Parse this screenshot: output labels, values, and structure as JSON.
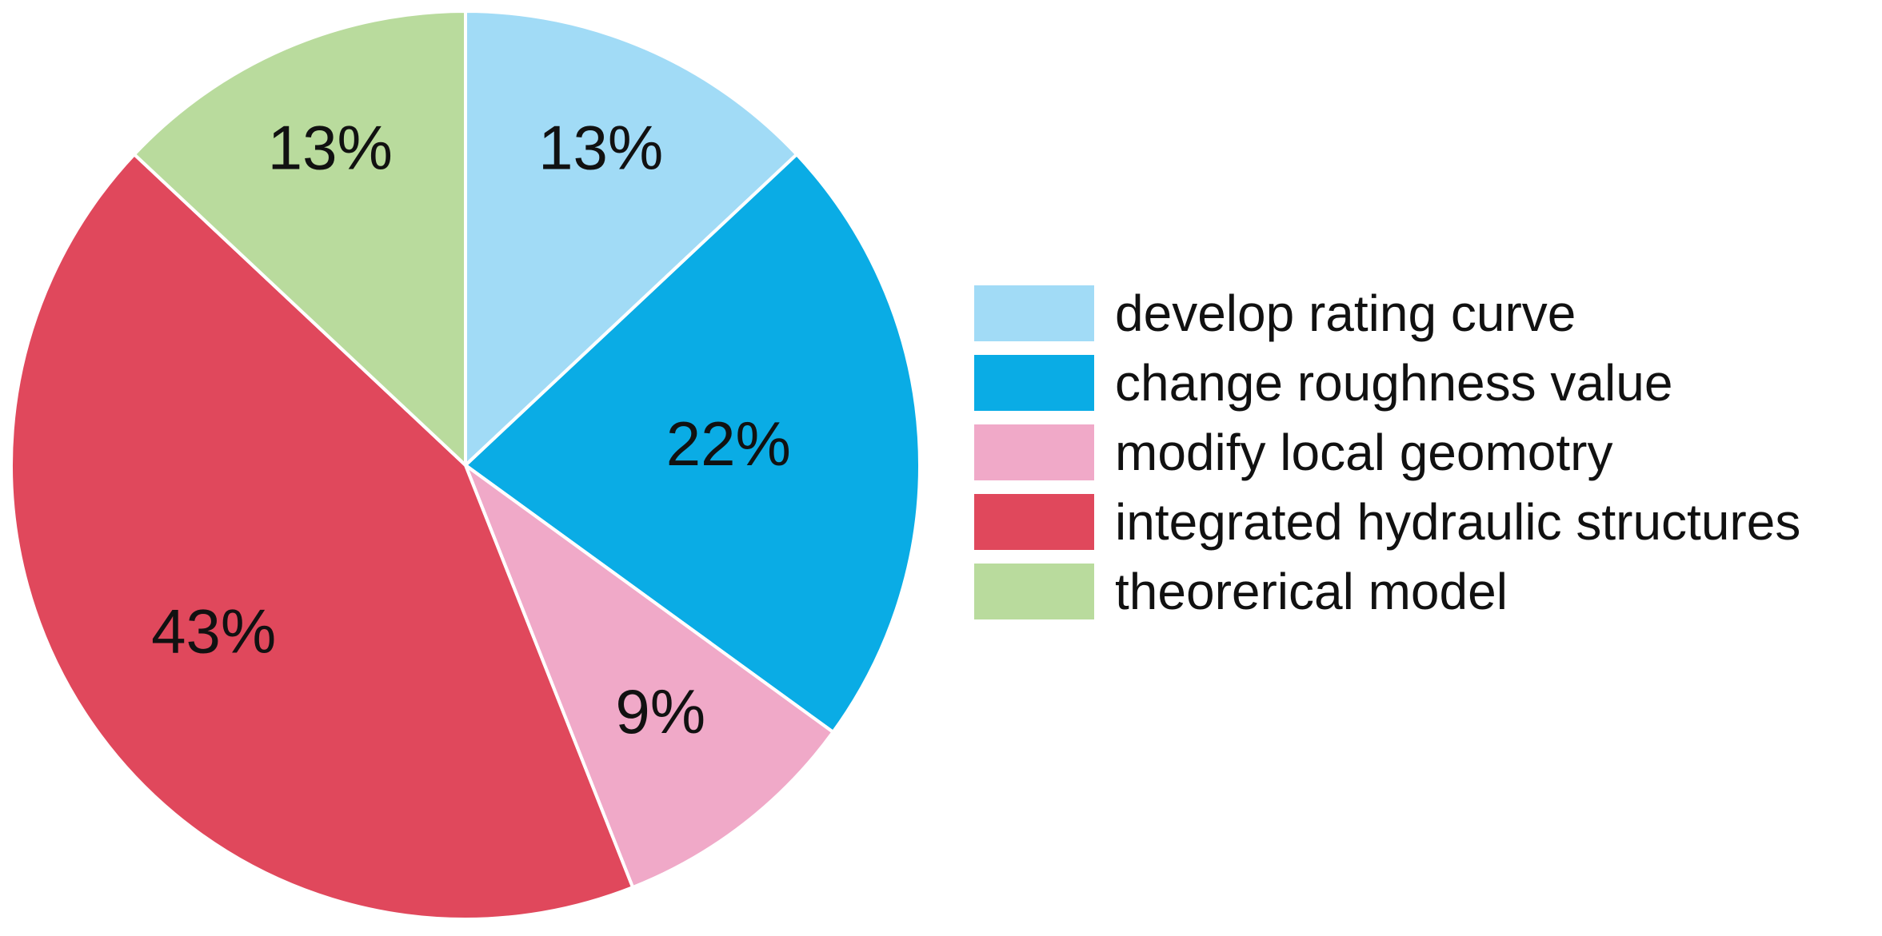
{
  "chart_data": {
    "type": "pie",
    "title": "",
    "start_angle_deg": 0,
    "direction": "clockwise",
    "legend_position": "right",
    "slices": [
      {
        "label": "develop rating curve",
        "value": 13,
        "display": "13%",
        "color": "#a1dbf6"
      },
      {
        "label": "change roughness value",
        "value": 22,
        "display": "22%",
        "color": "#0aace5"
      },
      {
        "label": "modify local geomotry",
        "value": 9,
        "display": "9%",
        "color": "#f0a9c8"
      },
      {
        "label": "integrated hydraulic structures",
        "value": 43,
        "display": "43%",
        "color": "#e0485c"
      },
      {
        "label": "theorerical model",
        "value": 13,
        "display": "13%",
        "color": "#b9db9d"
      }
    ]
  }
}
